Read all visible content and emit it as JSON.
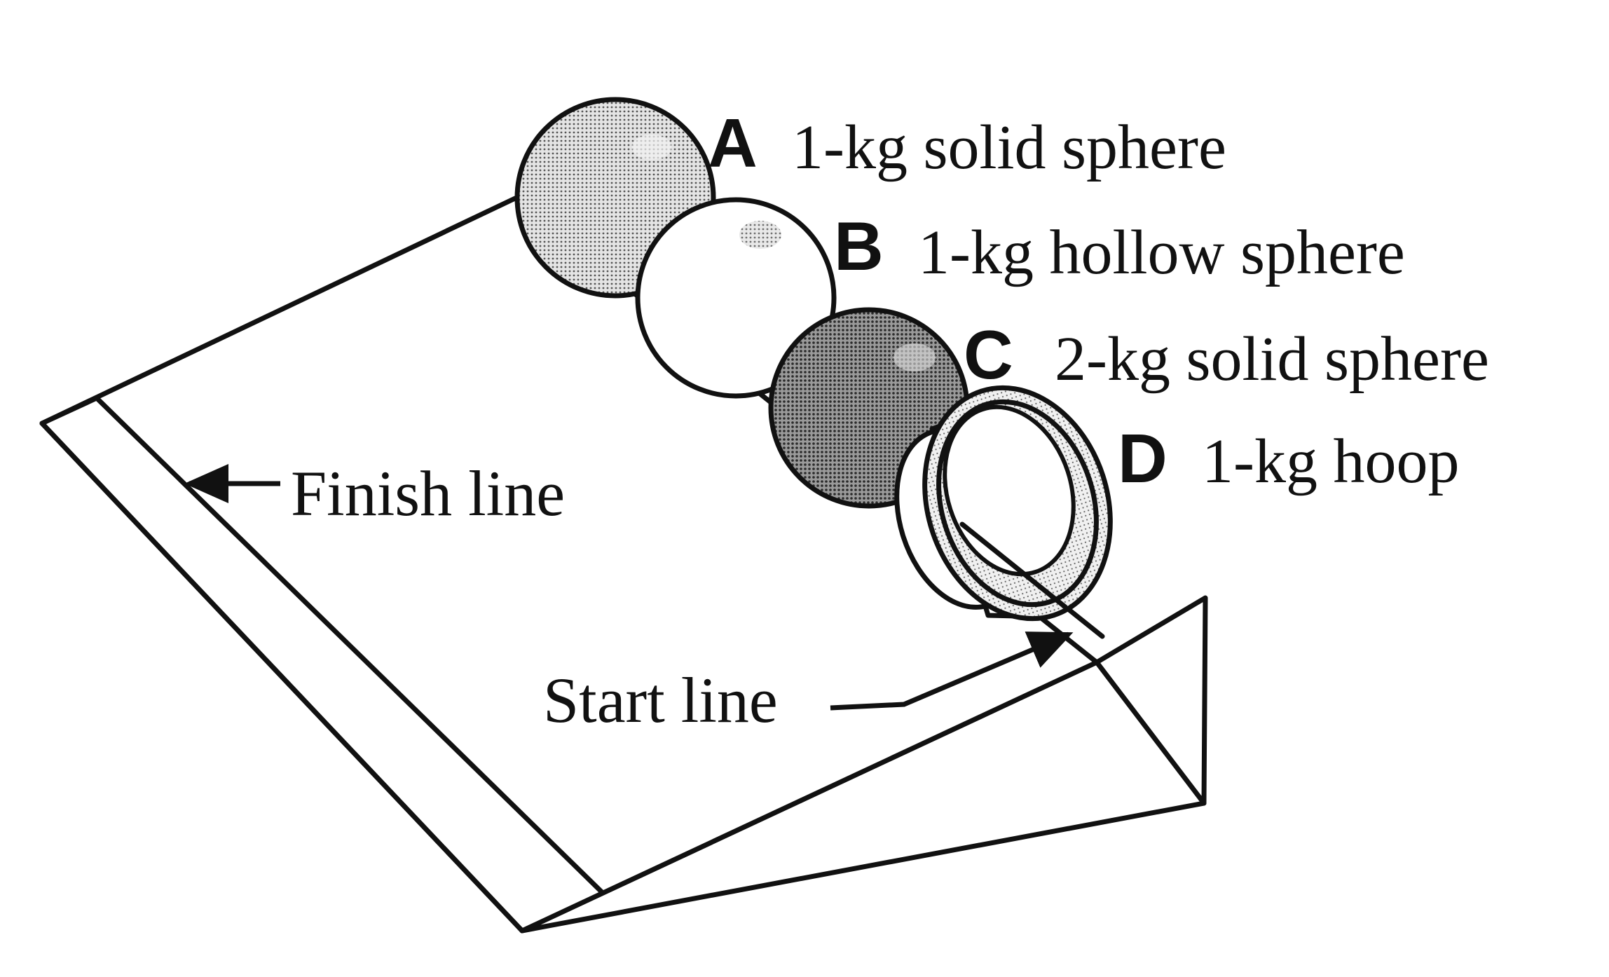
{
  "labels": {
    "finish_line": "Finish line",
    "start_line": "Start line"
  },
  "objects": [
    {
      "letter": "A",
      "description": "1-kg solid sphere"
    },
    {
      "letter": "B",
      "description": "1-kg hollow sphere"
    },
    {
      "letter": "C",
      "description": "2-kg solid sphere"
    },
    {
      "letter": "D",
      "description": "1-kg hoop"
    }
  ],
  "colors": {
    "ink": "#111111",
    "paper": "#ffffff",
    "shade_light": "#bdbdbd",
    "shade_dark": "#7a7a7a"
  }
}
